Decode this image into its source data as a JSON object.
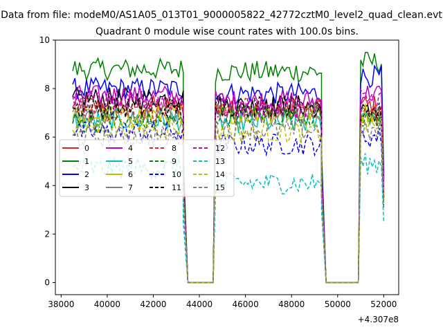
{
  "chart_data": {
    "type": "line",
    "suptitle": "Data from file: modeM0/AS1A05_013T01_9000005822_42772cztM0_level2_quad_clean.evt",
    "title": "Quadrant 0 module wise count rates with 100.0s bins.",
    "xlabel": "",
    "ylabel": "",
    "x_offset_label": "+4.307e8",
    "xlim": [
      37750,
      52650
    ],
    "ylim": [
      -0.5,
      10.0
    ],
    "x_ticks": [
      38000,
      40000,
      42000,
      44000,
      46000,
      48000,
      50000,
      52000
    ],
    "x_tick_labels": [
      "38000",
      "40000",
      "42000",
      "44000",
      "46000",
      "48000",
      "50000",
      "52000"
    ],
    "y_ticks": [
      0,
      2,
      4,
      6,
      8,
      10
    ],
    "y_tick_labels": [
      "0",
      "2",
      "4",
      "6",
      "8",
      "10"
    ],
    "grid": false,
    "legend_placement": "center-left",
    "segments": [
      {
        "x0": 38500,
        "x1": 43300
      },
      {
        "x0": 44700,
        "x1": 49300
      },
      {
        "x0": 51000,
        "x1": 51900
      }
    ],
    "gaps": [
      {
        "x": [
          43300,
          43500,
          44600,
          44700
        ]
      },
      {
        "x": [
          49300,
          49500,
          50900,
          51000
        ]
      }
    ],
    "series": [
      {
        "name": "0",
        "color": "#d62728",
        "dash": "solid",
        "level": [
          7.3,
          7.1,
          7.3
        ]
      },
      {
        "name": "1",
        "color": "#008000",
        "dash": "solid",
        "level": [
          8.8,
          8.7,
          9.1
        ]
      },
      {
        "name": "2",
        "color": "#0000ff",
        "dash": "solid",
        "level": [
          8.0,
          7.8,
          8.5
        ]
      },
      {
        "name": "3",
        "color": "#000000",
        "dash": "solid",
        "level": [
          7.6,
          7.3,
          7.0
        ]
      },
      {
        "name": "4",
        "color": "#bf00bf",
        "dash": "solid",
        "level": [
          7.7,
          7.5,
          7.8
        ]
      },
      {
        "name": "5",
        "color": "#00bfbf",
        "dash": "solid",
        "level": [
          6.7,
          6.6,
          6.9
        ]
      },
      {
        "name": "6",
        "color": "#bfbf00",
        "dash": "solid",
        "level": [
          6.9,
          7.0,
          7.0
        ]
      },
      {
        "name": "7",
        "color": "#808080",
        "dash": "solid",
        "level": [
          7.0,
          7.0,
          6.8
        ]
      },
      {
        "name": "8",
        "color": "#d62728",
        "dash": "dashed",
        "level": [
          7.1,
          7.2,
          7.0
        ]
      },
      {
        "name": "9",
        "color": "#008000",
        "dash": "dashed",
        "level": [
          6.6,
          6.9,
          6.8
        ]
      },
      {
        "name": "10",
        "color": "#0000ff",
        "dash": "dashed",
        "level": [
          6.2,
          5.7,
          6.0
        ]
      },
      {
        "name": "11",
        "color": "#000000",
        "dash": "dashed",
        "level": [
          7.2,
          7.3,
          7.1
        ]
      },
      {
        "name": "12",
        "color": "#bf00bf",
        "dash": "dashed",
        "level": [
          7.5,
          7.2,
          7.6
        ]
      },
      {
        "name": "13",
        "color": "#00bfbf",
        "dash": "dashed",
        "level": [
          4.7,
          4.1,
          4.9
        ]
      },
      {
        "name": "14",
        "color": "#bfbf00",
        "dash": "dashed",
        "level": [
          6.4,
          6.2,
          6.5
        ]
      },
      {
        "name": "15",
        "color": "#808080",
        "dash": "dashed",
        "level": [
          6.0,
          6.3,
          6.2
        ]
      }
    ]
  }
}
